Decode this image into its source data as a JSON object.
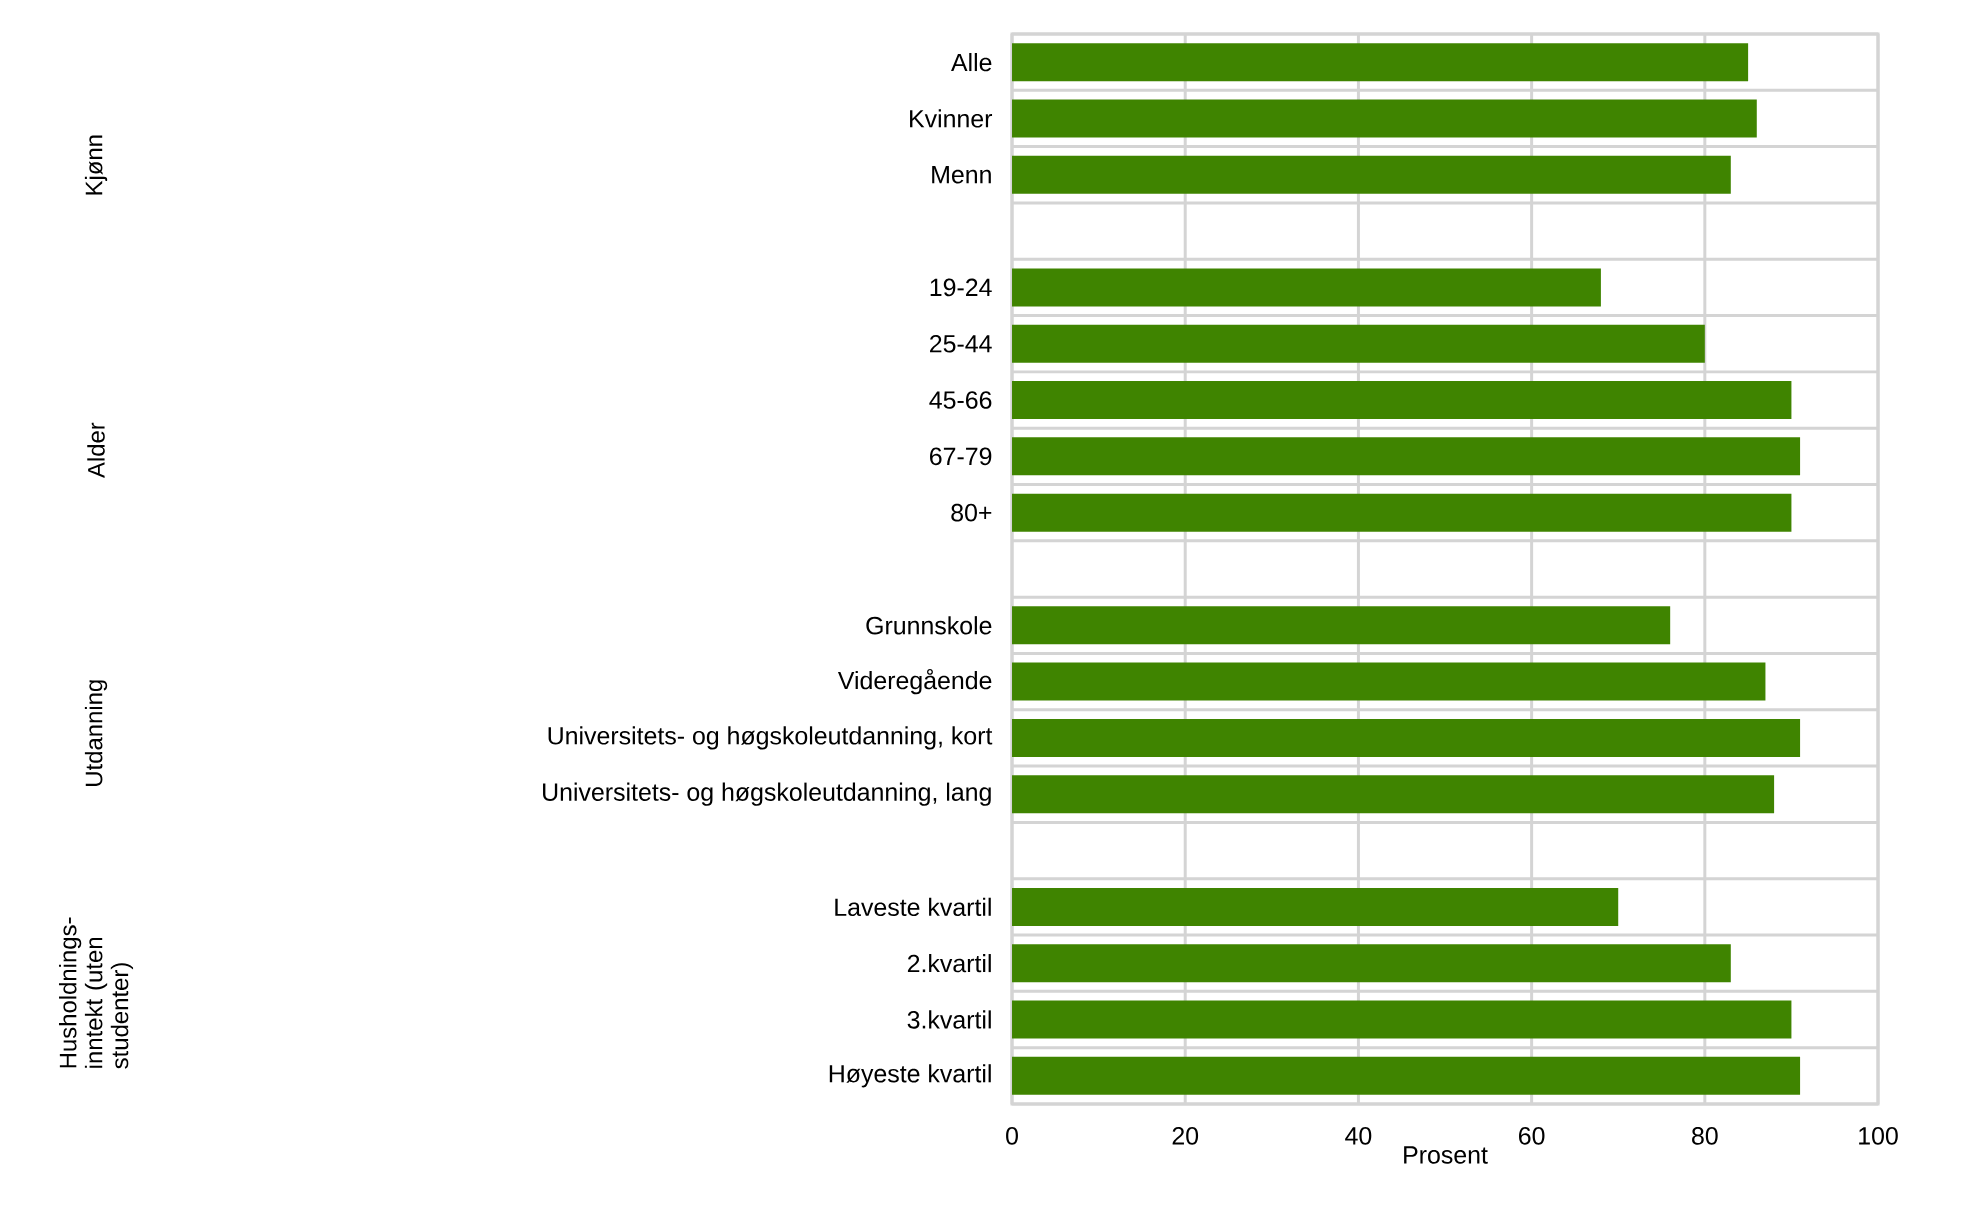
{
  "chart_data": {
    "type": "bar",
    "orientation": "horizontal",
    "xlabel": "Prosent",
    "categories": [
      "Alle",
      "Kvinner",
      "Menn",
      null,
      "19-24",
      "25-44",
      "45-66",
      "67-79",
      "80+",
      null,
      "Grunnskole",
      "Videregående",
      "Universitets- og høgskoleutdanning, kort",
      "Universitets- og høgskoleutdanning, lang",
      null,
      "Laveste kvartil",
      "2.kvartil",
      "3.kvartil",
      "Høyeste kvartil"
    ],
    "values": [
      85,
      86,
      83,
      null,
      68,
      80,
      90,
      91,
      90,
      null,
      76,
      87,
      91,
      88,
      null,
      70,
      83,
      90,
      91
    ],
    "color": "#3f8400",
    "xlim": [
      0,
      100
    ],
    "xticks": [
      0,
      20,
      40,
      60,
      80,
      100
    ],
    "grid": true,
    "annotations": [
      "Kjønn",
      "Alder",
      "Utdanning",
      "Husholdnings-inntekt (uten studenter)"
    ]
  }
}
